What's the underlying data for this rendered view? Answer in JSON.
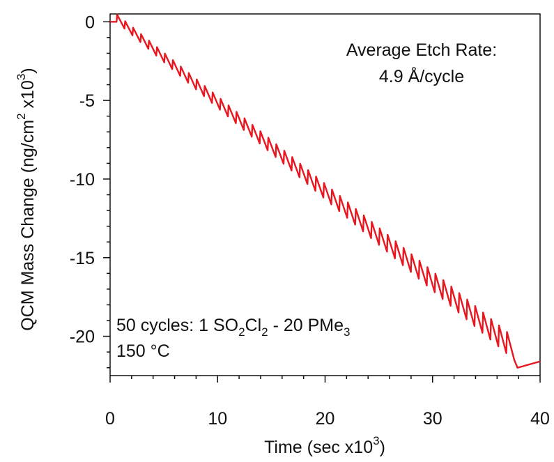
{
  "chart_data": {
    "type": "line",
    "title": "",
    "xlabel": "Time (sec x10^3)",
    "xlabel_parts": {
      "main": "Time (sec x10",
      "sup": "3",
      "end": ")"
    },
    "ylabel": "QCM Mass Change (ng/cm^2 x10^3)",
    "ylabel_parts": {
      "a": "QCM Mass Change (ng/cm",
      "sup1": "2",
      "b": " x10",
      "sup2": "3",
      "c": ")"
    },
    "xlim": [
      0,
      40
    ],
    "ylim": [
      -22.5,
      0.5
    ],
    "x_ticks": [
      0,
      10,
      20,
      30,
      40
    ],
    "x_tick_labels": [
      "0",
      "10",
      "20",
      "30",
      "40"
    ],
    "y_ticks": [
      0,
      -5,
      -10,
      -15,
      -20
    ],
    "y_tick_labels": [
      "0",
      "-5",
      "-10",
      "-15",
      "-20"
    ],
    "grid": false,
    "legend": "none",
    "line_color": "#e8161f",
    "series": [
      {
        "sawtooth": {
          "cycles": 50,
          "cycle_start_x": 0.6,
          "cycle_end_x": 37.6,
          "bottom_start_y": 0.0,
          "bottom_end_y": -21.5,
          "peak_start_height": 0.45,
          "peak_end_height": 1.35
        },
        "pre": [
          [
            0,
            0.0
          ],
          [
            0.6,
            0.0
          ]
        ],
        "post": [
          [
            37.6,
            -21.5
          ],
          [
            37.9,
            -22.0
          ],
          [
            40,
            -21.6
          ]
        ]
      }
    ],
    "annotations": {
      "rate_title": "Average Etch Rate:",
      "rate_value": "4.9 Å/cycle",
      "recipe": {
        "p1": "50 cycles: 1 SO",
        "s1": "2",
        "p2": "Cl",
        "s2": "2",
        "p3": " - 20 PMe",
        "s3": "3"
      },
      "temperature": "150 °C"
    }
  }
}
